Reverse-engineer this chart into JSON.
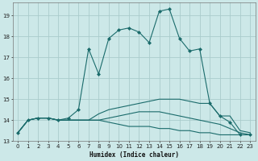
{
  "xlabel": "Humidex (Indice chaleur)",
  "bg_color": "#cce8e8",
  "grid_color": "#aacccc",
  "line_color": "#1a6b6b",
  "xlim": [
    -0.5,
    23.5
  ],
  "ylim": [
    13.0,
    19.6
  ],
  "yticks": [
    13,
    14,
    15,
    16,
    17,
    18,
    19
  ],
  "xticks": [
    0,
    1,
    2,
    3,
    4,
    5,
    6,
    7,
    8,
    9,
    10,
    11,
    12,
    13,
    14,
    15,
    16,
    17,
    18,
    19,
    20,
    21,
    22,
    23
  ],
  "curve_main": {
    "x": [
      0,
      1,
      2,
      3,
      4,
      5,
      6,
      7,
      8,
      9,
      10,
      11,
      12,
      13,
      14,
      15,
      16,
      17,
      18,
      19,
      20,
      21,
      22,
      23
    ],
    "y": [
      13.4,
      14.0,
      14.1,
      14.1,
      14.0,
      14.1,
      14.5,
      17.4,
      16.2,
      17.9,
      18.3,
      18.4,
      18.2,
      17.7,
      19.2,
      19.3,
      17.9,
      17.3,
      17.4,
      14.8,
      14.2,
      13.9,
      13.3,
      13.3
    ]
  },
  "curve_upper": {
    "x": [
      0,
      1,
      2,
      3,
      4,
      5,
      6,
      7,
      8,
      9,
      10,
      11,
      12,
      13,
      14,
      15,
      16,
      17,
      18,
      19,
      20,
      21,
      22,
      23
    ],
    "y": [
      13.4,
      14.0,
      14.1,
      14.1,
      14.0,
      14.0,
      14.0,
      14.0,
      14.3,
      14.5,
      14.6,
      14.7,
      14.8,
      14.9,
      15.0,
      15.0,
      15.0,
      14.9,
      14.8,
      14.8,
      14.2,
      14.2,
      13.5,
      13.4
    ]
  },
  "curve_mid": {
    "x": [
      0,
      1,
      2,
      3,
      4,
      5,
      6,
      7,
      8,
      9,
      10,
      11,
      12,
      13,
      14,
      15,
      16,
      17,
      18,
      19,
      20,
      21,
      22,
      23
    ],
    "y": [
      13.4,
      14.0,
      14.1,
      14.1,
      14.0,
      14.0,
      14.0,
      14.0,
      14.0,
      14.1,
      14.2,
      14.3,
      14.4,
      14.4,
      14.4,
      14.3,
      14.2,
      14.1,
      14.0,
      13.9,
      13.8,
      13.6,
      13.4,
      13.3
    ]
  },
  "curve_low": {
    "x": [
      0,
      1,
      2,
      3,
      4,
      5,
      6,
      7,
      8,
      9,
      10,
      11,
      12,
      13,
      14,
      15,
      16,
      17,
      18,
      19,
      20,
      21,
      22,
      23
    ],
    "y": [
      13.4,
      14.0,
      14.1,
      14.1,
      14.0,
      14.0,
      14.0,
      14.0,
      14.0,
      13.9,
      13.8,
      13.7,
      13.7,
      13.7,
      13.6,
      13.6,
      13.5,
      13.5,
      13.4,
      13.4,
      13.3,
      13.3,
      13.3,
      13.3
    ]
  }
}
